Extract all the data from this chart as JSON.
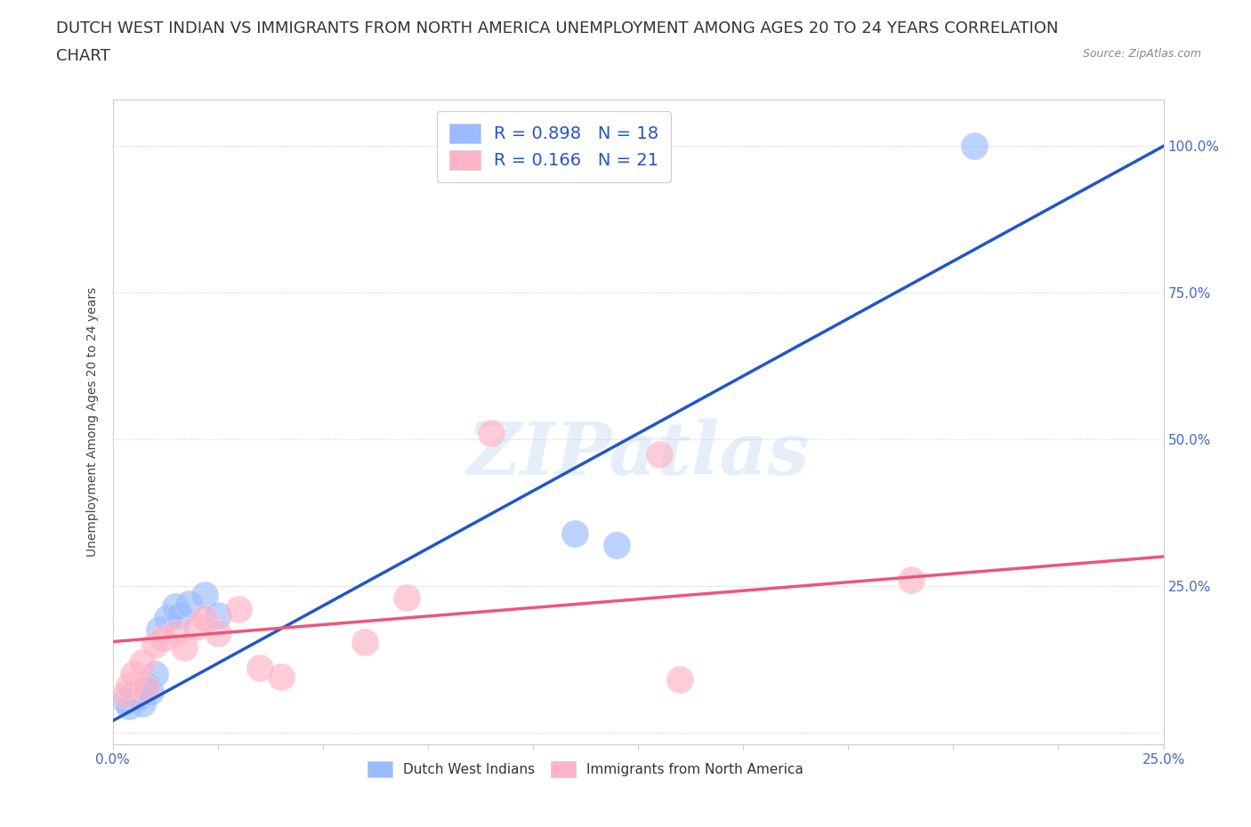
{
  "title_line1": "DUTCH WEST INDIAN VS IMMIGRANTS FROM NORTH AMERICA UNEMPLOYMENT AMONG AGES 20 TO 24 YEARS CORRELATION",
  "title_line2": "CHART",
  "source": "Source: ZipAtlas.com",
  "ylabel": "Unemployment Among Ages 20 to 24 years",
  "xlim": [
    0.0,
    0.25
  ],
  "ylim": [
    -0.02,
    1.08
  ],
  "xticks": [
    0.0,
    0.025,
    0.05,
    0.075,
    0.1,
    0.125,
    0.15,
    0.175,
    0.2,
    0.225,
    0.25
  ],
  "xtick_labels": [
    "0.0%",
    "",
    "",
    "",
    "",
    "",
    "",
    "",
    "",
    "",
    "25.0%"
  ],
  "yticks": [
    0.0,
    0.25,
    0.5,
    0.75,
    1.0
  ],
  "ytick_labels": [
    "",
    "25.0%",
    "50.0%",
    "75.0%",
    "100.0%"
  ],
  "blue_color": "#99BBFF",
  "pink_color": "#FFB3C6",
  "blue_line_color": "#2255CC",
  "pink_line_color": "#EE5577",
  "r_blue": 0.898,
  "n_blue": 18,
  "r_pink": 0.166,
  "n_pink": 21,
  "watermark": "ZIPatlas",
  "blue_points_x": [
    0.003,
    0.004,
    0.005,
    0.006,
    0.007,
    0.008,
    0.009,
    0.01,
    0.011,
    0.013,
    0.015,
    0.016,
    0.018,
    0.022,
    0.025,
    0.11,
    0.12,
    0.205
  ],
  "blue_points_y": [
    0.055,
    0.045,
    0.065,
    0.06,
    0.05,
    0.08,
    0.07,
    0.1,
    0.175,
    0.195,
    0.215,
    0.2,
    0.22,
    0.235,
    0.2,
    0.34,
    0.32,
    1.0
  ],
  "pink_points_x": [
    0.003,
    0.004,
    0.005,
    0.007,
    0.008,
    0.01,
    0.012,
    0.015,
    0.017,
    0.02,
    0.022,
    0.025,
    0.03,
    0.035,
    0.04,
    0.06,
    0.07,
    0.09,
    0.13,
    0.135,
    0.19
  ],
  "pink_points_y": [
    0.065,
    0.08,
    0.1,
    0.12,
    0.075,
    0.15,
    0.16,
    0.17,
    0.145,
    0.18,
    0.195,
    0.17,
    0.21,
    0.11,
    0.095,
    0.155,
    0.23,
    0.51,
    0.475,
    0.09,
    0.26
  ],
  "blue_line_x0": 0.0,
  "blue_line_y0": 0.02,
  "blue_line_x1": 0.25,
  "blue_line_y1": 1.0,
  "pink_line_x0": 0.0,
  "pink_line_y0": 0.155,
  "pink_line_x1": 0.25,
  "pink_line_y1": 0.3,
  "background_color": "#FFFFFF",
  "grid_color": "#CCCCCC",
  "tick_color": "#4466CC",
  "axis_color": "#CCCCCC",
  "title_fontsize": 13,
  "label_fontsize": 10,
  "tick_fontsize": 11
}
